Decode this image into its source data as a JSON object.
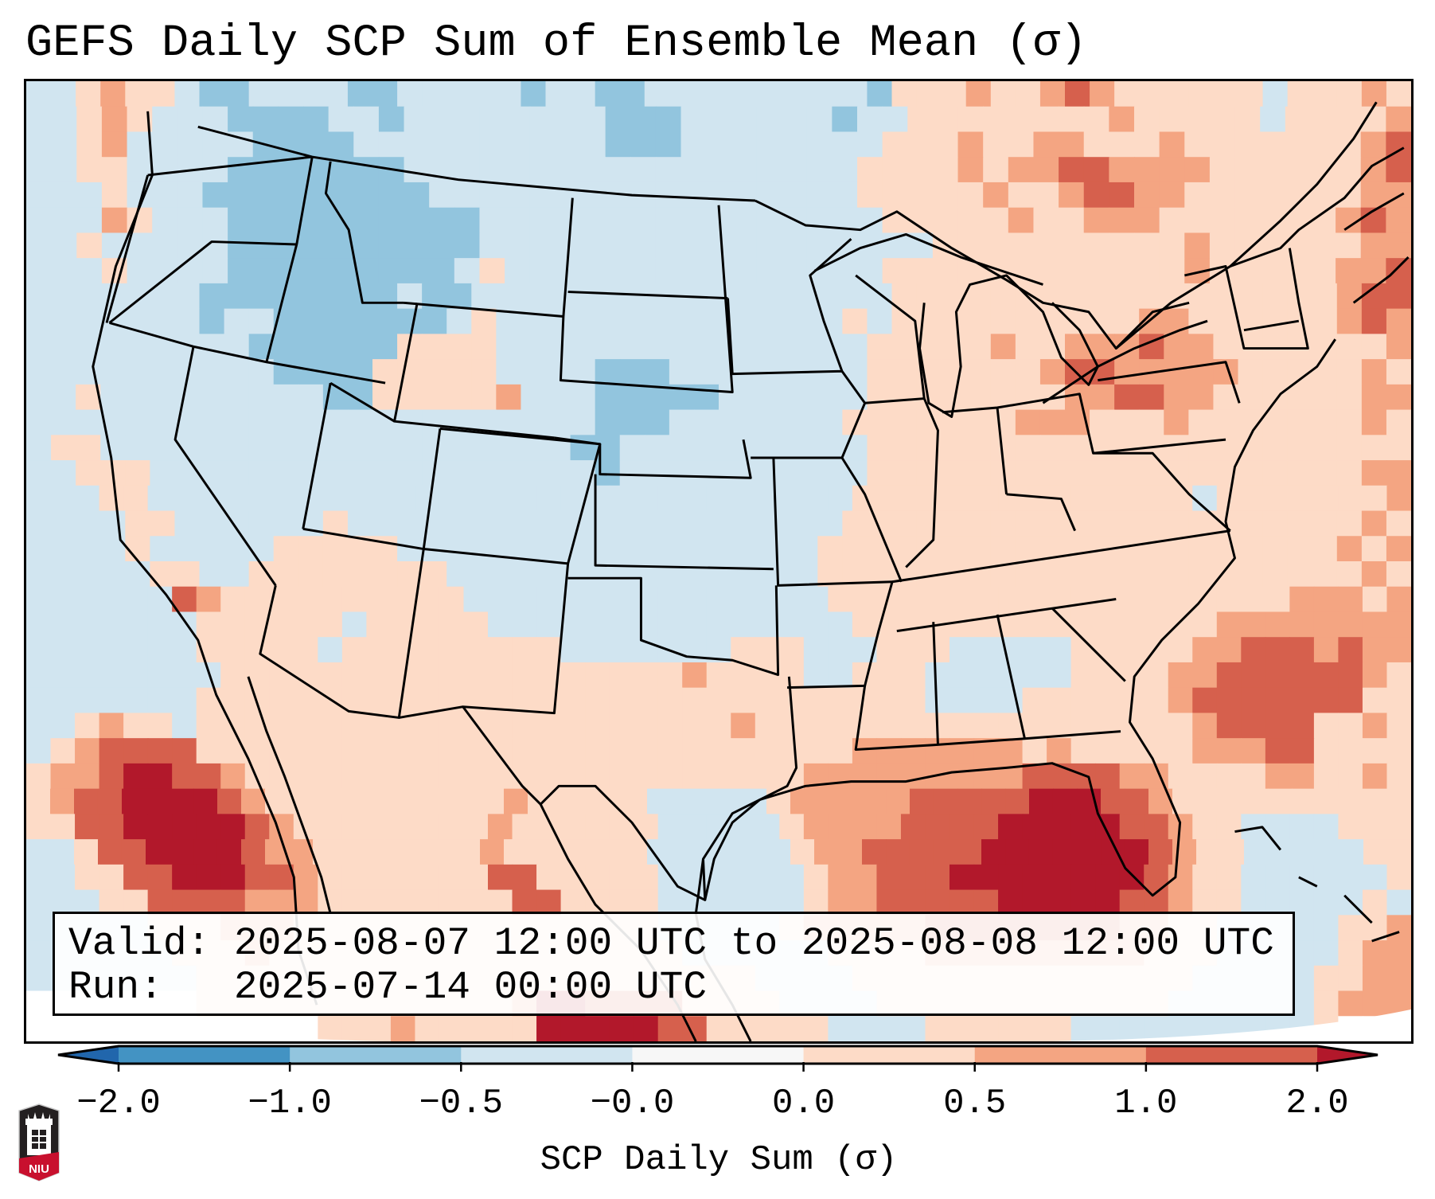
{
  "title": "GEFS Daily SCP Sum of Ensemble Mean (σ)",
  "info_box": {
    "valid_line": "Valid: 2025-08-07 12:00 UTC to 2025-08-08 12:00 UTC",
    "run_line": "Run:   2025-07-14 00:00 UTC"
  },
  "colorbar": {
    "label": "SCP Daily Sum (σ)",
    "ticks": [
      "−2.0",
      "−1.0",
      "−0.5",
      "−0.0",
      "0.0",
      "0.5",
      "1.0",
      "2.0"
    ],
    "bins": [
      {
        "range": "< -2.0",
        "color": "#2166ac"
      },
      {
        "range": "-2.0 to -1.0",
        "color": "#4393c3"
      },
      {
        "range": "-1.0 to -0.5",
        "color": "#92c5de"
      },
      {
        "range": "-0.5 to -0.0",
        "color": "#d1e5f0"
      },
      {
        "range": "-0.0 to 0.0",
        "color": "#f7f7f7"
      },
      {
        "range": "0.0 to 0.5",
        "color": "#fddbc7"
      },
      {
        "range": "0.5 to 1.0",
        "color": "#f4a582"
      },
      {
        "range": "1.0 to 2.0",
        "color": "#d6604d"
      },
      {
        "range": "> 2.0",
        "color": "#b2182b"
      }
    ],
    "extend": "both"
  },
  "logo": {
    "text": "NIU",
    "name": "Northern Illinois University"
  },
  "chart_data": {
    "type": "heatmap",
    "title": "GEFS Daily SCP Sum of Ensemble Mean (σ)",
    "colorbar_label": "SCP Daily Sum (σ)",
    "levels": [
      -2.0,
      -1.0,
      -0.5,
      -0.0,
      0.0,
      0.5,
      1.0,
      2.0
    ],
    "region": "Contiguous United States",
    "valid": "2025-08-07 12:00 UTC to 2025-08-08 12:00 UTC",
    "run": "2025-07-14 00:00 UTC",
    "legend_placement": "bottom",
    "grid_key": {
      "b": "-1.0 to -0.5",
      "l": "-0.5 to -0.0",
      "w": "-0.0 to 0.0",
      "p": "0.0 to 0.5",
      "o": "0.5 to 1.0",
      "r": "1.0 to 2.0",
      "d": "> 2.0"
    },
    "grid_rows": [
      "llpopplbbllllbblllllbllbblllllllllbpppopporopppppplpppop",
      "llpoplllbbbbllbllllllllbbbllllllbllppppppppoppppplppppo",
      "llpolllllbbbbllllllllllbbbllllllllpppoppoopppopppppppor",
      "llppllllbbbbbbbllllllllllllllllllppppopoorrooooppppppor",
      "lllplllbbbbbbbbblllllllllllllllllpppppopporroopppppppoo",
      "llloplllbbbbbbbbbbllllllllllllllllpppppoppoooppppppporo",
      "llplllllbbbbbbbbbbllllllllllllllllllppppppppppoppppppoo",
      "lllpllllbbbbbbbbblplllllllllllllllppppppppppppopppppoor",
      "lllllllbbbbbbbblbblllllllllllllllllpppppppppppppppppporr",
      "lllllllbllbbbbbbblpllllllllllllllplppppppppppoopppppporo",
      "lllllllllbbbbbbpppplllllllllllllllpppppoppoooroopppppppo",
      "llllllllllbbbbpppppllllbbbllllllllppppppporrooooopppppop",
      "llplllllllllbbpppppolllbbbbbllllllppppppppoorrooppppppoo",
      "lllllllllllllllllllllllbbblllllllpppppppooopppopppppppop",
      "lpplllllllllllllllllllbbllllllllllpppppppppppppppppppppp",
      "llpppllllllllllllllllllbllllllllllppppppppppppppppppppoo",
      "lllpplllllllllllllllllllllllllllllpppppppppppppplpppppppo",
      "llllppllllllpllllllllllllllllllllpppppppppppppppppppppop",
      "llllplllllppppplllllllllllllllllpppppppppppppppppppppopo",
      "lllllppllpppppppplllllllllllllllppppppppppppppppppppppop",
      "llllllropppppppppplllllllllllllllpppppppppppppppppppooopo",
      "lllllllpppppplppppplllllllllllllllpppppppppppppppoooooooo",
      "lllllllppppplppppppppplllllllppplllppplllllpppppoorrroroo",
      "llllllllpppppppppppppppppppoppppllpppllllllppppoorrrrrrop",
      "lllllllppppppppppppppppppppppppppppppllllpppppporrrrrrrpp",
      "llpopplppppppppppppppppppppppopppppppppppppppppporrrrppop",
      "lporrrrpppppppppppppppppppppppppppooooooopopppppooorrpppp",
      "poorddrropppppppppppppppppppppppooooooooorrrrooppppooppop",
      "porrddddroppppppppppoppppplllllpooooorrrrrdddrropppppppppp",
      "pprrdddddroppppppppopppppplllllpoooorrrrdddddrroppllllppp",
      "llprrddddroopppppppoppppppllllllpoorrrrrdddddddropplllllpp",
      "llpprrdddrroppppppprrpppppllllllpoorrrddddddddroppllllllp",
      "lllpprrrrooopppppppprrppppllllllpoorrrrrdddddrropplllllpl",
      "lllllpppoooppppppppppppppplllllpooooorrrrrrrroopplllllppo",
      "llllllpppopppppppppppppppppllllllppppoooooooooppplllllpoo",
      "lllllllpppppppppppppppppppppppllllpppppppppppppplllllppoo",
      "wwwwwwwpppppppppppppoddrrrrppppllllppppppppppppllllllpooo",
      "wwwwwwwwwwwwpppopppppdddddrrpppppllllppppppllllllllllpwww"
    ]
  }
}
